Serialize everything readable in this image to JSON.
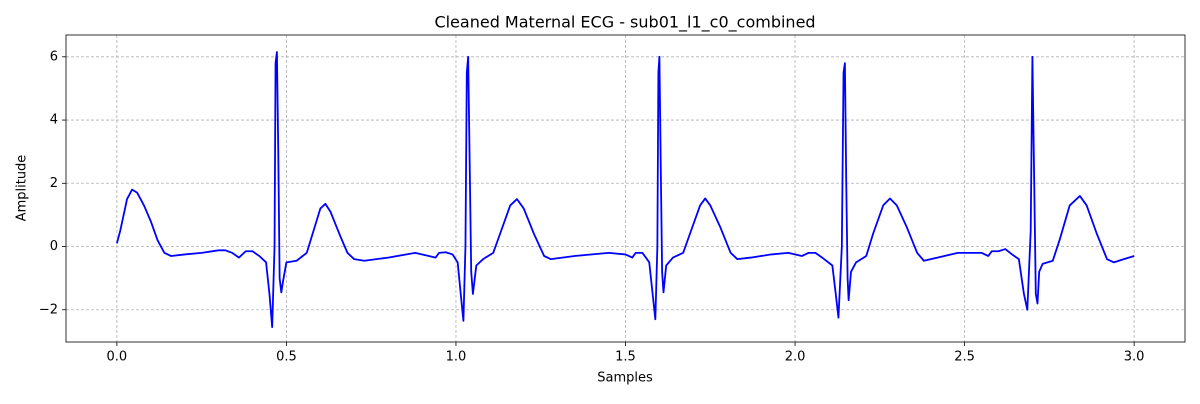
{
  "chart_data": {
    "type": "line",
    "title": "Cleaned Maternal ECG - sub01_l1_c0_combined",
    "xlabel": "Samples",
    "ylabel": "Amplitude",
    "color": "blue",
    "grid": true,
    "xlim": [
      -0.15,
      3.15
    ],
    "ylim": [
      -3.02,
      6.69
    ],
    "xticks": [
      {
        "value": 0,
        "label": "0.0"
      },
      0.5,
      {
        "value": 1,
        "label": "1.0"
      },
      1.5,
      {
        "value": 2,
        "label": "2.0"
      },
      2.5,
      {
        "value": 3,
        "label": "3.0"
      }
    ],
    "yticks": [
      {
        "value": -2,
        "label": "−2"
      },
      0,
      2,
      4,
      6
    ],
    "x": [
      0.0,
      0.01,
      0.02,
      0.03,
      0.045,
      0.06,
      0.08,
      0.1,
      0.12,
      0.14,
      0.16,
      0.2,
      0.25,
      0.3,
      0.32,
      0.34,
      0.36,
      0.38,
      0.4,
      0.42,
      0.44,
      0.45,
      0.458,
      0.465,
      0.468,
      0.472,
      0.476,
      0.48,
      0.485,
      0.49,
      0.5,
      0.53,
      0.56,
      0.58,
      0.6,
      0.615,
      0.63,
      0.66,
      0.68,
      0.7,
      0.73,
      0.8,
      0.88,
      0.92,
      0.94,
      0.95,
      0.97,
      0.99,
      1.005,
      1.015,
      1.022,
      1.028,
      1.032,
      1.036,
      1.04,
      1.045,
      1.05,
      1.06,
      1.08,
      1.11,
      1.13,
      1.16,
      1.18,
      1.2,
      1.23,
      1.26,
      1.28,
      1.35,
      1.45,
      1.5,
      1.52,
      1.53,
      1.55,
      1.57,
      1.58,
      1.588,
      1.594,
      1.597,
      1.6,
      1.604,
      1.608,
      1.612,
      1.62,
      1.64,
      1.67,
      1.69,
      1.72,
      1.735,
      1.75,
      1.78,
      1.81,
      1.83,
      1.87,
      1.93,
      1.98,
      2.0,
      2.02,
      2.04,
      2.06,
      2.08,
      2.11,
      2.12,
      2.128,
      2.138,
      2.143,
      2.147,
      2.151,
      2.155,
      2.158,
      2.165,
      2.18,
      2.21,
      2.23,
      2.26,
      2.28,
      2.3,
      2.33,
      2.36,
      2.38,
      2.42,
      2.48,
      2.55,
      2.57,
      2.58,
      2.6,
      2.62,
      2.64,
      2.66,
      2.675,
      2.685,
      2.695,
      2.7,
      2.704,
      2.71,
      2.715,
      2.72,
      2.73,
      2.76,
      2.78,
      2.81,
      2.84,
      2.86,
      2.89,
      2.92,
      2.94,
      2.97,
      3.0
    ],
    "values": [
      0.1,
      0.5,
      1.0,
      1.5,
      1.8,
      1.7,
      1.3,
      0.8,
      0.2,
      -0.2,
      -0.3,
      -0.25,
      -0.2,
      -0.12,
      -0.12,
      -0.2,
      -0.35,
      -0.15,
      -0.15,
      -0.3,
      -0.5,
      -1.5,
      -2.55,
      0,
      5.8,
      6.15,
      3,
      -1.0,
      -1.45,
      -1.1,
      -0.5,
      -0.45,
      -0.2,
      0.5,
      1.2,
      1.35,
      1.1,
      0.3,
      -0.2,
      -0.4,
      -0.45,
      -0.35,
      -0.2,
      -0.3,
      -0.35,
      -0.2,
      -0.18,
      -0.25,
      -0.5,
      -1.6,
      -2.35,
      0,
      5.5,
      6.0,
      3,
      -0.8,
      -1.5,
      -0.6,
      -0.4,
      -0.2,
      0.4,
      1.3,
      1.5,
      1.2,
      0.4,
      -0.3,
      -0.4,
      -0.3,
      -0.2,
      -0.25,
      -0.35,
      -0.2,
      -0.2,
      -0.5,
      -1.5,
      -2.3,
      0,
      5.5,
      6.0,
      2.5,
      -0.8,
      -1.45,
      -0.6,
      -0.35,
      -0.2,
      0.4,
      1.3,
      1.52,
      1.3,
      0.6,
      -0.2,
      -0.4,
      -0.35,
      -0.25,
      -0.2,
      -0.25,
      -0.3,
      -0.2,
      -0.2,
      -0.35,
      -0.6,
      -1.5,
      -2.25,
      0,
      5.5,
      5.8,
      2,
      -1.0,
      -1.7,
      -0.8,
      -0.5,
      -0.3,
      0.4,
      1.3,
      1.52,
      1.3,
      0.6,
      -0.2,
      -0.45,
      -0.35,
      -0.2,
      -0.2,
      -0.3,
      -0.15,
      -0.15,
      -0.08,
      -0.25,
      -0.4,
      -1.5,
      -2.0,
      0.5,
      6.0,
      3,
      -1.5,
      -1.8,
      -0.8,
      -0.55,
      -0.45,
      0.2,
      1.3,
      1.6,
      1.3,
      0.4,
      -0.4,
      -0.5,
      -0.4,
      -0.3
    ]
  }
}
